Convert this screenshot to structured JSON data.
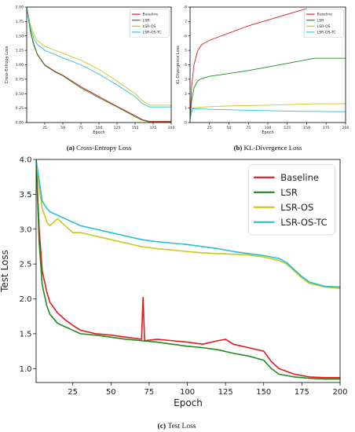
{
  "colors": {
    "Baseline": "#e41a1c",
    "LSR": "#1e8a1e",
    "LSR-OS": "#c8c81e",
    "LSR-OS-TC": "#27c0d0"
  },
  "chart_data": [
    {
      "id": "a",
      "type": "line",
      "caption_label": "(a)",
      "caption_text": "Cross-Entropy Loss",
      "xlabel": "Epoch",
      "ylabel": "Cross-Entropy Loss",
      "xlim": [
        0,
        200
      ],
      "ylim": [
        0,
        2.0
      ],
      "xticks": [
        25,
        50,
        75,
        100,
        125,
        150,
        175,
        200
      ],
      "yticks": [
        0.0,
        0.25,
        0.5,
        0.75,
        1.0,
        1.25,
        1.5,
        1.75,
        2.0
      ],
      "ytick_labels": [
        "0.00",
        "0.25",
        "0.50",
        "0.75",
        "1.00",
        "1.25",
        "1.50",
        "1.75",
        "2.00"
      ],
      "legend_position": "top-right",
      "series": [
        {
          "name": "Baseline",
          "x": [
            0,
            5,
            10,
            15,
            25,
            40,
            50,
            75,
            100,
            125,
            150,
            160,
            170,
            200
          ],
          "values": [
            2.0,
            1.6,
            1.35,
            1.18,
            1.0,
            0.88,
            0.82,
            0.62,
            0.45,
            0.28,
            0.12,
            0.05,
            0.02,
            0.02
          ]
        },
        {
          "name": "LSR",
          "x": [
            0,
            5,
            10,
            15,
            25,
            40,
            50,
            75,
            100,
            125,
            150,
            160,
            170,
            200
          ],
          "values": [
            2.0,
            1.58,
            1.33,
            1.17,
            0.99,
            0.87,
            0.81,
            0.6,
            0.43,
            0.27,
            0.1,
            0.04,
            0.01,
            0.01
          ]
        },
        {
          "name": "LSR-OS",
          "x": [
            0,
            5,
            10,
            15,
            25,
            50,
            75,
            100,
            125,
            150,
            160,
            170,
            200
          ],
          "values": [
            2.0,
            1.7,
            1.52,
            1.42,
            1.32,
            1.2,
            1.08,
            0.92,
            0.72,
            0.5,
            0.38,
            0.3,
            0.3
          ]
        },
        {
          "name": "LSR-OS-TC",
          "x": [
            0,
            5,
            10,
            15,
            25,
            50,
            75,
            100,
            125,
            150,
            160,
            170,
            200
          ],
          "values": [
            2.0,
            1.65,
            1.45,
            1.35,
            1.25,
            1.12,
            1.0,
            0.84,
            0.65,
            0.45,
            0.33,
            0.27,
            0.27
          ]
        }
      ]
    },
    {
      "id": "b",
      "type": "line",
      "caption_label": "(b)",
      "caption_text": "KL-Divergence Loss",
      "xlabel": "Epoch",
      "ylabel": "KL-Divergence Loss",
      "xlim": [
        0,
        200
      ],
      "ylim": [
        0,
        8
      ],
      "xticks": [
        25,
        50,
        75,
        100,
        125,
        150,
        175,
        200
      ],
      "yticks": [
        0,
        1,
        2,
        3,
        4,
        5,
        6,
        7,
        8
      ],
      "ytick_labels": [
        "0",
        "1",
        "2",
        "3",
        "4",
        "5",
        "6",
        "7",
        "8"
      ],
      "legend_position": "top-right",
      "series": [
        {
          "name": "Baseline",
          "x": [
            0,
            2,
            5,
            10,
            15,
            25,
            50,
            75,
            100,
            125,
            150
          ],
          "values": [
            0.2,
            2.5,
            4.0,
            5.0,
            5.4,
            5.7,
            6.2,
            6.7,
            7.1,
            7.5,
            7.9
          ]
        },
        {
          "name": "LSR",
          "x": [
            0,
            2,
            5,
            10,
            15,
            25,
            50,
            75,
            100,
            125,
            150,
            160,
            200
          ],
          "values": [
            0.2,
            1.5,
            2.4,
            2.9,
            3.05,
            3.2,
            3.4,
            3.6,
            3.85,
            4.1,
            4.35,
            4.45,
            4.45
          ]
        },
        {
          "name": "LSR-OS",
          "x": [
            0,
            3,
            10,
            25,
            50,
            100,
            150,
            160,
            200
          ],
          "values": [
            0.2,
            1.0,
            1.05,
            1.1,
            1.15,
            1.2,
            1.28,
            1.3,
            1.3
          ]
        },
        {
          "name": "LSR-OS-TC",
          "x": [
            0,
            3,
            10,
            25,
            50,
            100,
            150,
            200
          ],
          "values": [
            0.2,
            0.95,
            0.95,
            0.92,
            0.88,
            0.82,
            0.77,
            0.75
          ]
        }
      ]
    },
    {
      "id": "c",
      "type": "line",
      "caption_label": "(c)",
      "caption_text": "Test Loss",
      "xlabel": "Epoch",
      "ylabel": "Test Loss",
      "xlim": [
        1,
        200
      ],
      "ylim": [
        0.8,
        4.0
      ],
      "xticks": [
        25,
        50,
        75,
        100,
        125,
        150,
        175,
        200
      ],
      "yticks": [
        1.0,
        1.5,
        2.0,
        2.5,
        3.0,
        3.5,
        4.0
      ],
      "ytick_labels": [
        "1.0",
        "1.5",
        "2.0",
        "2.5",
        "3.0",
        "3.5",
        "4.0"
      ],
      "legend_position": "top-right",
      "series": [
        {
          "name": "Baseline",
          "x": [
            1,
            3,
            5,
            8,
            10,
            15,
            20,
            25,
            30,
            40,
            50,
            60,
            70,
            71,
            72,
            80,
            90,
            100,
            110,
            120,
            125,
            130,
            140,
            150,
            155,
            160,
            170,
            180,
            190,
            200
          ],
          "values": [
            4.0,
            3.0,
            2.4,
            2.1,
            1.95,
            1.8,
            1.7,
            1.62,
            1.55,
            1.5,
            1.48,
            1.45,
            1.42,
            2.02,
            1.4,
            1.42,
            1.4,
            1.38,
            1.35,
            1.4,
            1.42,
            1.35,
            1.3,
            1.25,
            1.1,
            1.0,
            0.92,
            0.88,
            0.87,
            0.87
          ]
        },
        {
          "name": "LSR",
          "x": [
            1,
            3,
            5,
            8,
            10,
            15,
            20,
            25,
            30,
            40,
            50,
            60,
            70,
            80,
            90,
            100,
            110,
            120,
            130,
            140,
            150,
            155,
            160,
            170,
            180,
            190,
            200
          ],
          "values": [
            4.0,
            2.8,
            2.2,
            1.9,
            1.78,
            1.65,
            1.6,
            1.55,
            1.5,
            1.48,
            1.45,
            1.42,
            1.4,
            1.38,
            1.35,
            1.32,
            1.3,
            1.27,
            1.22,
            1.18,
            1.12,
            1.0,
            0.92,
            0.88,
            0.86,
            0.85,
            0.85
          ]
        },
        {
          "name": "LSR-OS",
          "x": [
            1,
            3,
            5,
            8,
            10,
            15,
            20,
            25,
            30,
            40,
            50,
            60,
            70,
            80,
            90,
            100,
            110,
            120,
            130,
            140,
            150,
            160,
            165,
            170,
            175,
            180,
            190,
            200
          ],
          "values": [
            4.0,
            3.6,
            3.3,
            3.1,
            3.05,
            3.15,
            3.05,
            2.95,
            2.95,
            2.9,
            2.85,
            2.8,
            2.75,
            2.72,
            2.7,
            2.68,
            2.66,
            2.65,
            2.64,
            2.63,
            2.6,
            2.55,
            2.5,
            2.4,
            2.3,
            2.22,
            2.17,
            2.15
          ]
        },
        {
          "name": "LSR-OS-TC",
          "x": [
            1,
            3,
            5,
            8,
            10,
            15,
            20,
            25,
            30,
            40,
            50,
            60,
            70,
            80,
            90,
            100,
            110,
            120,
            130,
            140,
            150,
            160,
            165,
            170,
            175,
            180,
            190,
            200
          ],
          "values": [
            4.0,
            3.7,
            3.4,
            3.3,
            3.25,
            3.2,
            3.15,
            3.1,
            3.05,
            3.0,
            2.95,
            2.9,
            2.85,
            2.82,
            2.8,
            2.78,
            2.75,
            2.72,
            2.68,
            2.65,
            2.62,
            2.58,
            2.52,
            2.42,
            2.32,
            2.24,
            2.18,
            2.17
          ]
        }
      ]
    }
  ]
}
